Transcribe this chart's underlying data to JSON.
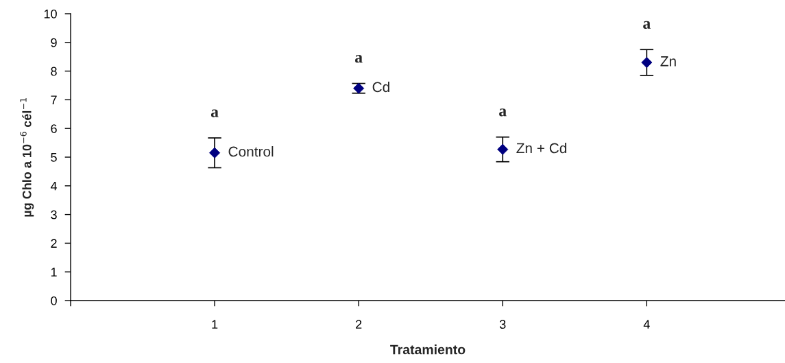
{
  "chart_data": {
    "type": "scatter",
    "xlabel": "Tratamiento",
    "ylabel": "µg Chlo a 10$^{−6}$ cél$^{−1}$",
    "x": [
      1,
      2,
      3,
      4
    ],
    "series": [
      {
        "color": "#000080",
        "values": [
          5.15,
          7.4,
          5.27,
          8.3
        ],
        "errors": [
          0.52,
          0.17,
          0.43,
          0.45
        ]
      }
    ],
    "annotations": [
      {
        "text": "Control",
        "x": 1,
        "y": 5.15
      },
      {
        "text": "Cd",
        "x": 2,
        "y": 7.4
      },
      {
        "text": "Zn + Cd",
        "x": 3,
        "y": 5.27
      },
      {
        "text": "Zn",
        "x": 4,
        "y": 8.3
      },
      "a",
      "a",
      "a",
      "a"
    ],
    "xlim": [
      0,
      4.96
    ],
    "ylim": [
      0,
      10
    ],
    "xticks": [
      {
        "value": 0,
        "label": null
      },
      1,
      2,
      3,
      4
    ],
    "yticks": [
      0,
      1,
      2,
      3,
      4,
      5,
      6,
      7,
      8,
      9,
      10
    ],
    "marker": "diamond",
    "grid": false,
    "legend": false
  }
}
